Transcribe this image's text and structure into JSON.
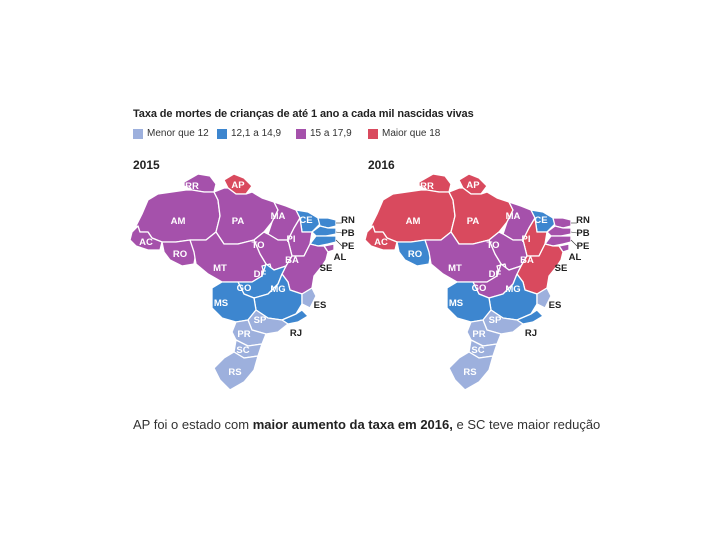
{
  "title": "Taxa de mortes de crianças de até 1 ano a cada mil nascidas vivas",
  "legend": [
    {
      "key": "low",
      "label": "Menor que 12",
      "color": "#9db0dd"
    },
    {
      "key": "mid",
      "label": "12,1 a 14,9",
      "color": "#3d86cf"
    },
    {
      "key": "high",
      "label": "15 a 17,9",
      "color": "#a551ab"
    },
    {
      "key": "top",
      "label": "Maior que 18",
      "color": "#d94a5e"
    }
  ],
  "maps": [
    {
      "year": "2015",
      "states": {
        "RR": "high",
        "AP": "top",
        "AM": "high",
        "PA": "high",
        "AC": "high",
        "RO": "high",
        "MA": "high",
        "CE": "mid",
        "PI": "high",
        "TO": "high",
        "RN": "mid",
        "PB": "mid",
        "PE": "mid",
        "AL": "high",
        "SE": "high",
        "BA": "high",
        "MT": "high",
        "DF": "mid",
        "GO": "mid",
        "MG": "mid",
        "MS": "mid",
        "ES": "low",
        "RJ": "mid",
        "SP": "low",
        "PR": "low",
        "SC": "low",
        "RS": "low"
      }
    },
    {
      "year": "2016",
      "states": {
        "RR": "top",
        "AP": "top",
        "AM": "top",
        "PA": "top",
        "AC": "top",
        "RO": "mid",
        "MA": "high",
        "CE": "mid",
        "PI": "top",
        "TO": "high",
        "RN": "high",
        "PB": "high",
        "PE": "high",
        "AL": "high",
        "SE": "high",
        "BA": "top",
        "MT": "high",
        "DF": "high",
        "GO": "high",
        "MG": "mid",
        "MS": "mid",
        "ES": "low",
        "RJ": "mid",
        "SP": "low",
        "PR": "low",
        "SC": "low",
        "RS": "low"
      }
    }
  ],
  "caption": {
    "part1": "AP foi o estado com ",
    "bold": "maior aumento da taxa em 2016,",
    "part2": " e SC teve maior redução"
  }
}
